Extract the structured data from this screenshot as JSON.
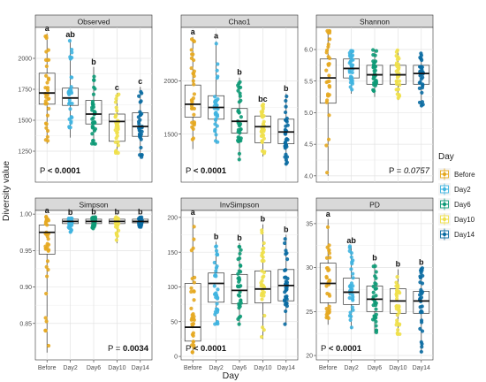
{
  "figure": {
    "ylabel": "Diversity value",
    "xlabel": "Day",
    "legend_title": "Day",
    "colors": {
      "Before": "#E5A820",
      "Day2": "#3FB4E0",
      "Day6": "#0E9A77",
      "Day10": "#EFE04A",
      "Day14": "#0A6BA2"
    }
  },
  "legend": {
    "title": "Day",
    "items": [
      "Before",
      "Day2",
      "Day6",
      "Day10",
      "Day14"
    ]
  },
  "chart_data": [
    {
      "type": "boxplot",
      "title": "Observed",
      "categories": [
        "Before",
        "Day2",
        "Day6",
        "Day10",
        "Day14"
      ],
      "ylim": [
        1000,
        2250
      ],
      "yticks": [
        1250,
        1500,
        1750,
        2000
      ],
      "box": {
        "q1": [
          1630,
          1620,
          1470,
          1330,
          1370
        ],
        "median": [
          1720,
          1680,
          1550,
          1490,
          1450
        ],
        "q3": [
          1880,
          1760,
          1660,
          1550,
          1560
        ],
        "lower_whisker": [
          1310,
          1360,
          1300,
          1230,
          1190
        ],
        "upper_whisker": [
          2200,
          2150,
          1930,
          1720,
          1770
        ]
      },
      "letters": [
        "a",
        "ab",
        "b",
        "c",
        "c"
      ],
      "pvalue": "< 0.0001",
      "p_prefix": "P",
      "p_italic": false
    },
    {
      "type": "boxplot",
      "title": "Chao1",
      "categories": [
        "Before",
        "Day2",
        "Day6",
        "Day10",
        "Day14"
      ],
      "ylim": [
        1050,
        2500
      ],
      "yticks": [
        1500,
        2000
      ],
      "box": {
        "q1": [
          1660,
          1640,
          1510,
          1420,
          1410
        ],
        "median": [
          1780,
          1750,
          1620,
          1570,
          1520
        ],
        "q3": [
          1960,
          1860,
          1740,
          1670,
          1640
        ],
        "lower_whisker": [
          1360,
          1410,
          1260,
          1290,
          1210
        ],
        "upper_whisker": [
          2410,
          2370,
          2030,
          1780,
          1880
        ]
      },
      "letters": [
        "a",
        "a",
        "b",
        "bc",
        "b"
      ],
      "pvalue": "< 0.0001",
      "p_prefix": "P",
      "p_italic": false
    },
    {
      "type": "boxplot",
      "title": "Shannon",
      "categories": [
        "Before",
        "Day2",
        "Day6",
        "Day10",
        "Day14"
      ],
      "ylim": [
        3.9,
        6.35
      ],
      "yticks": [
        4.0,
        4.5,
        5.0,
        5.5,
        6.0
      ],
      "box": {
        "q1": [
          5.15,
          5.55,
          5.45,
          5.45,
          5.45
        ],
        "median": [
          5.55,
          5.7,
          5.6,
          5.6,
          5.62
        ],
        "q3": [
          5.85,
          5.85,
          5.75,
          5.75,
          5.75
        ],
        "lower_whisker": [
          4.0,
          5.3,
          5.25,
          5.2,
          5.1
        ],
        "upper_whisker": [
          6.3,
          6.0,
          6.0,
          6.0,
          5.95
        ]
      },
      "letters": [],
      "pvalue": "0.0757",
      "p_prefix": "P =",
      "p_italic": true
    },
    {
      "type": "boxplot",
      "title": "Simpson",
      "categories": [
        "Before",
        "Day2",
        "Day6",
        "Day10",
        "Day14"
      ],
      "ylim": [
        0.8,
        1.005
      ],
      "yticks": [
        0.85,
        0.9,
        0.95,
        1.0
      ],
      "box": {
        "q1": [
          0.945,
          0.987,
          0.987,
          0.987,
          0.988
        ],
        "median": [
          0.975,
          0.99,
          0.99,
          0.99,
          0.99
        ],
        "q3": [
          0.985,
          0.993,
          0.993,
          0.993,
          0.993
        ],
        "lower_whisker": [
          0.81,
          0.975,
          0.98,
          0.96,
          0.982
        ],
        "upper_whisker": [
          0.998,
          0.995,
          0.996,
          0.996,
          0.996
        ]
      },
      "letters": [
        "a",
        "b",
        "b",
        "b",
        "b"
      ],
      "pvalue": "0.0034",
      "p_prefix": "P =",
      "p_italic": false
    },
    {
      "type": "boxplot",
      "title": "InvSimpson",
      "categories": [
        "Before",
        "Day2",
        "Day6",
        "Day10",
        "Day14"
      ],
      "ylim": [
        -5,
        210
      ],
      "yticks": [
        0,
        50,
        100,
        150,
        200
      ],
      "box": {
        "q1": [
          22,
          78,
          76,
          77,
          80
        ],
        "median": [
          42,
          105,
          95,
          97,
          102
        ],
        "q3": [
          105,
          120,
          118,
          123,
          125
        ],
        "lower_whisker": [
          3,
          45,
          45,
          25,
          45
        ],
        "upper_whisker": [
          200,
          165,
          163,
          190,
          175
        ]
      },
      "letters": [
        "a",
        "b",
        "b",
        "b",
        "b"
      ],
      "pvalue": "< 0.0001",
      "p_prefix": "P",
      "p_italic": false
    },
    {
      "type": "boxplot",
      "title": "PD",
      "categories": [
        "Before",
        "Day2",
        "Day6",
        "Day10",
        "Day14"
      ],
      "ylim": [
        19.5,
        36.5
      ],
      "yticks": [
        20,
        25,
        30,
        35
      ],
      "box": {
        "q1": [
          26.0,
          25.8,
          25.0,
          24.8,
          24.8
        ],
        "median": [
          28.2,
          27.2,
          26.4,
          26.2,
          26.2
        ],
        "q3": [
          30.5,
          28.8,
          27.9,
          27.6,
          27.3
        ],
        "lower_whisker": [
          23.5,
          23.0,
          22.5,
          22.3,
          20.3
        ],
        "upper_whisker": [
          35.5,
          32.5,
          30.5,
          29.8,
          30.0
        ]
      },
      "letters": [
        "a",
        "ab",
        "b",
        "b",
        "b"
      ],
      "pvalue": "< 0.0001",
      "p_prefix": "P",
      "p_italic": false
    }
  ]
}
